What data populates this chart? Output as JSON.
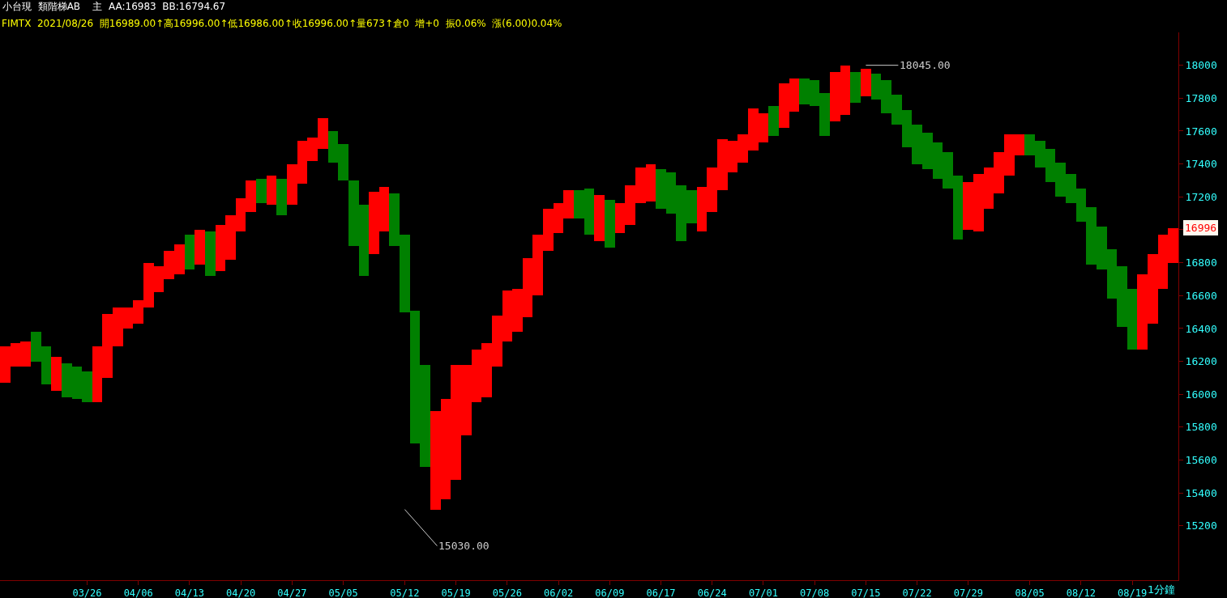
{
  "chart_data": {
    "type": "bar",
    "title": "小台現  類階梯AB    主  AA:16983  BB:16794.67",
    "subtitle": "FIMTX  2021/08/26  開16989.00↑高16996.00↑低16986.00↑收16996.00↑量673↑倉0  增+0  振0.06%  漲(6.00)0.04%",
    "categories": [
      null,
      null,
      null,
      null,
      null,
      null,
      null,
      null,
      "03/26",
      null,
      null,
      null,
      null,
      "04/06",
      null,
      null,
      null,
      null,
      "04/13",
      null,
      null,
      null,
      null,
      "04/20",
      null,
      null,
      null,
      null,
      "04/27",
      null,
      null,
      null,
      null,
      "05/05",
      null,
      null,
      null,
      null,
      null,
      "05/12",
      null,
      null,
      null,
      null,
      "05/19",
      null,
      null,
      null,
      null,
      "05/26",
      null,
      null,
      null,
      null,
      "06/02",
      null,
      null,
      null,
      null,
      "06/09",
      null,
      null,
      null,
      null,
      "06/17",
      null,
      null,
      null,
      null,
      "06/24",
      null,
      null,
      null,
      null,
      "07/01",
      null,
      null,
      null,
      null,
      "07/08",
      null,
      null,
      null,
      null,
      "07/15",
      null,
      null,
      null,
      null,
      "07/22",
      null,
      null,
      null,
      null,
      "07/29",
      null,
      null,
      null,
      null,
      null,
      "08/05",
      null,
      null,
      null,
      null,
      "08/12",
      null,
      null,
      null,
      null,
      "08/19",
      null,
      null,
      null,
      null
    ],
    "base": [
      16070,
      16170,
      16170,
      16200,
      16060,
      16020,
      15980,
      15970,
      15950,
      15950,
      16100,
      16290,
      16400,
      16430,
      16530,
      16620,
      16700,
      16730,
      16760,
      16790,
      16720,
      16750,
      16820,
      16990,
      17110,
      17160,
      17150,
      17090,
      17150,
      17280,
      17420,
      17490,
      17410,
      17300,
      16900,
      16720,
      16850,
      16990,
      16900,
      16500,
      15700,
      15560,
      15300,
      15360,
      15480,
      15750,
      15950,
      15980,
      16170,
      16320,
      16380,
      16470,
      16600,
      16870,
      16980,
      17070,
      17070,
      16970,
      16930,
      16890,
      16980,
      17030,
      17160,
      17170,
      17130,
      17100,
      16930,
      17040,
      16990,
      17110,
      17240,
      17350,
      17410,
      17480,
      17530,
      17570,
      17620,
      17720,
      17760,
      17750,
      17570,
      17660,
      17700,
      17770,
      17810,
      17790,
      17710,
      17640,
      17500,
      17400,
      17370,
      17310,
      17250,
      16940,
      17000,
      16990,
      17130,
      17220,
      17330,
      17450,
      17450,
      17380,
      17290,
      17200,
      17160,
      17050,
      16790,
      16760,
      16580,
      16410,
      16270,
      16270,
      16430,
      16640,
      16800
    ],
    "values": [
      220,
      140,
      150,
      180,
      230,
      210,
      210,
      200,
      190,
      340,
      390,
      240,
      130,
      140,
      270,
      160,
      170,
      180,
      210,
      210,
      270,
      280,
      270,
      200,
      190,
      150,
      180,
      220,
      250,
      260,
      140,
      190,
      190,
      220,
      400,
      430,
      380,
      270,
      320,
      470,
      810,
      620,
      600,
      610,
      700,
      430,
      320,
      330,
      310,
      310,
      260,
      360,
      370,
      260,
      180,
      170,
      170,
      280,
      280,
      290,
      180,
      240,
      220,
      230,
      240,
      250,
      340,
      200,
      270,
      270,
      310,
      190,
      170,
      260,
      180,
      180,
      270,
      200,
      160,
      160,
      260,
      300,
      300,
      190,
      170,
      160,
      200,
      180,
      230,
      240,
      220,
      220,
      220,
      390,
      290,
      350,
      250,
      250,
      250,
      130,
      130,
      160,
      200,
      210,
      180,
      200,
      350,
      260,
      300,
      370,
      370,
      460,
      420,
      330,
      210
    ],
    "colors": [
      "#ff0000",
      "#ff0000",
      "#ff0000",
      "#008000",
      "#008000",
      "#ff0000",
      "#008000",
      "#008000",
      "#008000",
      "#ff0000",
      "#ff0000",
      "#ff0000",
      "#ff0000",
      "#ff0000",
      "#ff0000",
      "#ff0000",
      "#ff0000",
      "#ff0000",
      "#008000",
      "#ff0000",
      "#008000",
      "#ff0000",
      "#ff0000",
      "#ff0000",
      "#ff0000",
      "#008000",
      "#ff0000",
      "#008000",
      "#ff0000",
      "#ff0000",
      "#ff0000",
      "#ff0000",
      "#008000",
      "#008000",
      "#008000",
      "#008000",
      "#ff0000",
      "#ff0000",
      "#008000",
      "#008000",
      "#008000",
      "#008000",
      "#ff0000",
      "#ff0000",
      "#ff0000",
      "#ff0000",
      "#ff0000",
      "#ff0000",
      "#ff0000",
      "#ff0000",
      "#ff0000",
      "#ff0000",
      "#ff0000",
      "#ff0000",
      "#ff0000",
      "#ff0000",
      "#008000",
      "#008000",
      "#ff0000",
      "#008000",
      "#ff0000",
      "#ff0000",
      "#ff0000",
      "#ff0000",
      "#008000",
      "#008000",
      "#008000",
      "#008000",
      "#ff0000",
      "#ff0000",
      "#ff0000",
      "#ff0000",
      "#ff0000",
      "#ff0000",
      "#ff0000",
      "#008000",
      "#ff0000",
      "#ff0000",
      "#008000",
      "#008000",
      "#008000",
      "#ff0000",
      "#ff0000",
      "#008000",
      "#ff0000",
      "#008000",
      "#008000",
      "#008000",
      "#008000",
      "#008000",
      "#008000",
      "#008000",
      "#008000",
      "#008000",
      "#ff0000",
      "#ff0000",
      "#ff0000",
      "#ff0000",
      "#ff0000",
      "#ff0000",
      "#008000",
      "#008000",
      "#008000",
      "#008000",
      "#008000",
      "#008000",
      "#008000",
      "#008000",
      "#008000",
      "#008000",
      "#008000",
      "#ff0000",
      "#ff0000",
      "#ff0000",
      "#ff0000"
    ],
    "ylim": [
      14870,
      18200
    ],
    "yticks": [
      15200,
      15400,
      15600,
      15800,
      16000,
      16200,
      16400,
      16600,
      16800,
      {
        "value": 17000,
        "label": null
      },
      17200,
      17400,
      17600,
      17800,
      18000
    ],
    "annotations": [
      "18045.00",
      "15030.00",
      "16996",
      "1分鐘"
    ],
    "grid": false
  }
}
